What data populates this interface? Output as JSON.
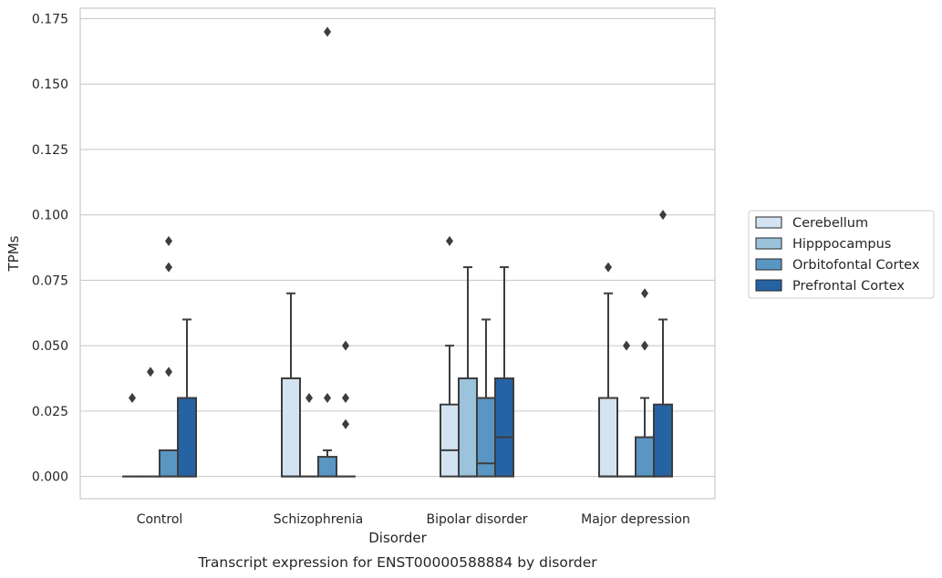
{
  "chart_data": {
    "type": "box",
    "caption": "Transcript expression for ENST00000588884 by disorder",
    "xlabel": "Disorder",
    "ylabel": "TPMs",
    "ylim": [
      -0.0085,
      0.179
    ],
    "yticks": [
      0.0,
      0.025,
      0.05,
      0.075,
      0.1,
      0.125,
      0.15,
      0.175
    ],
    "ytick_labels": [
      "0.000",
      "0.025",
      "0.050",
      "0.075",
      "0.100",
      "0.125",
      "0.150",
      "0.175"
    ],
    "grid": "horizontal",
    "legend_position": "right",
    "categories": [
      "Control",
      "Schizophrenia",
      "Bipolar disorder",
      "Major depression"
    ],
    "series": [
      {
        "name": "Cerebellum",
        "color": "#d4e3f1",
        "boxes": [
          {
            "q1": 0.0,
            "median": 0.0,
            "q3": 0.0,
            "whisker_low": 0.0,
            "whisker_high": 0.0,
            "outliers": [
              0.03
            ]
          },
          {
            "q1": 0.0,
            "median": 0.0,
            "q3": 0.0375,
            "whisker_low": 0.0,
            "whisker_high": 0.07,
            "outliers": []
          },
          {
            "q1": 0.0,
            "median": 0.01,
            "q3": 0.0275,
            "whisker_low": 0.0,
            "whisker_high": 0.05,
            "outliers": [
              0.09
            ]
          },
          {
            "q1": 0.0,
            "median": 0.0,
            "q3": 0.03,
            "whisker_low": 0.0,
            "whisker_high": 0.07,
            "outliers": [
              0.08
            ]
          }
        ]
      },
      {
        "name": "Hipppocampus",
        "color": "#9bc3dc",
        "boxes": [
          {
            "q1": 0.0,
            "median": 0.0,
            "q3": 0.0,
            "whisker_low": 0.0,
            "whisker_high": 0.0,
            "outliers": [
              0.04
            ]
          },
          {
            "q1": 0.0,
            "median": 0.0,
            "q3": 0.0,
            "whisker_low": 0.0,
            "whisker_high": 0.0,
            "outliers": [
              0.03
            ]
          },
          {
            "q1": 0.0,
            "median": 0.0,
            "q3": 0.0375,
            "whisker_low": 0.0,
            "whisker_high": 0.08,
            "outliers": []
          },
          {
            "q1": 0.0,
            "median": 0.0,
            "q3": 0.0,
            "whisker_low": 0.0,
            "whisker_high": 0.0,
            "outliers": [
              0.05
            ]
          }
        ]
      },
      {
        "name": "Orbitofontal Cortex",
        "color": "#5996c4",
        "boxes": [
          {
            "q1": 0.0,
            "median": 0.0,
            "q3": 0.01,
            "whisker_low": 0.0,
            "whisker_high": 0.01,
            "outliers": [
              0.04,
              0.08,
              0.09
            ]
          },
          {
            "q1": 0.0,
            "median": 0.0,
            "q3": 0.0075,
            "whisker_low": 0.0,
            "whisker_high": 0.01,
            "outliers": [
              0.03,
              0.17
            ]
          },
          {
            "q1": 0.0,
            "median": 0.005,
            "q3": 0.03,
            "whisker_low": 0.0,
            "whisker_high": 0.06,
            "outliers": []
          },
          {
            "q1": 0.0,
            "median": 0.0,
            "q3": 0.015,
            "whisker_low": 0.0,
            "whisker_high": 0.03,
            "outliers": [
              0.05,
              0.07
            ]
          }
        ]
      },
      {
        "name": "Prefrontal Cortex",
        "color": "#2563a4",
        "boxes": [
          {
            "q1": 0.0,
            "median": 0.0,
            "q3": 0.03,
            "whisker_low": 0.0,
            "whisker_high": 0.06,
            "outliers": []
          },
          {
            "q1": 0.0,
            "median": 0.0,
            "q3": 0.0,
            "whisker_low": 0.0,
            "whisker_high": 0.0,
            "outliers": [
              0.02,
              0.03,
              0.05
            ]
          },
          {
            "q1": 0.0,
            "median": 0.015,
            "q3": 0.0375,
            "whisker_low": 0.0,
            "whisker_high": 0.08,
            "outliers": []
          },
          {
            "q1": 0.0,
            "median": 0.0,
            "q3": 0.0275,
            "whisker_low": 0.0,
            "whisker_high": 0.06,
            "outliers": [
              0.1
            ]
          }
        ]
      }
    ]
  }
}
